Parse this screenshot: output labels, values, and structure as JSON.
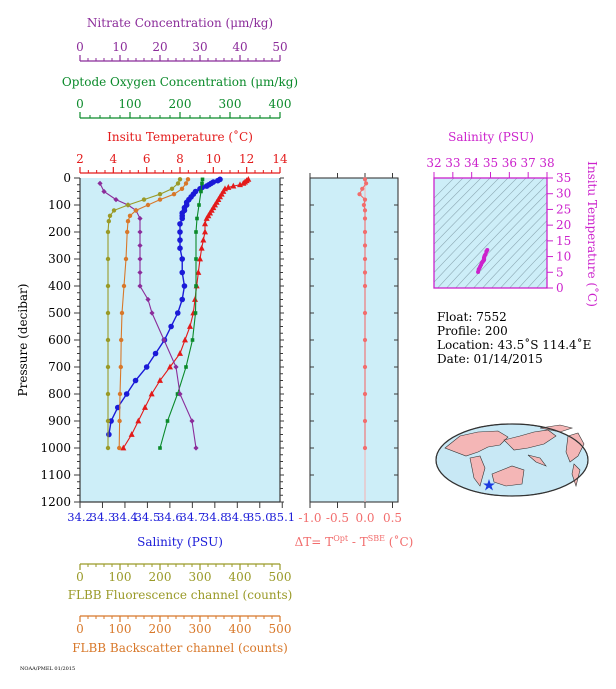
{
  "colors": {
    "nitrate": "#8b2c9a",
    "oxygen": "#0a8a2a",
    "temperature": "#e31a1a",
    "salinity": "#1a1ad8",
    "fluorescence": "#9a9a28",
    "backscatter": "#d8782a",
    "delta_t": "#f26d6d",
    "ts_axis": "#cc22cc",
    "panel_bg": "#cdeef8",
    "axis_dark": "#3a3a3a"
  },
  "axes": {
    "nitrate": {
      "label": "Nitrate Concentration (μm/kg)",
      "ticks": [
        "0",
        "10",
        "20",
        "30",
        "40",
        "50"
      ]
    },
    "oxygen": {
      "label": "Optode Oxygen Concentration (μm/kg)",
      "ticks": [
        "0",
        "100",
        "200",
        "300",
        "400"
      ]
    },
    "temperature": {
      "label": "Insitu Temperature (˚C)",
      "ticks": [
        "2",
        "4",
        "6",
        "8",
        "10",
        "12",
        "14"
      ]
    },
    "pressure": {
      "label": "Pressure (decibar)",
      "ticks": [
        "0",
        "100",
        "200",
        "300",
        "400",
        "500",
        "600",
        "700",
        "800",
        "900",
        "1000",
        "1100",
        "1200"
      ]
    },
    "salinity": {
      "label": "Salinity (PSU)",
      "ticks": [
        "34.2",
        "34.3",
        "34.4",
        "34.5",
        "34.6",
        "34.7",
        "34.8",
        "34.9",
        "35.0",
        "35.1"
      ]
    },
    "fluorescence": {
      "label": "FLBB Fluorescence channel (counts)",
      "ticks": [
        "0",
        "100",
        "200",
        "300",
        "400",
        "500"
      ]
    },
    "backscatter": {
      "label": "FLBB Backscatter channel (counts)",
      "ticks": [
        "0",
        "100",
        "200",
        "300",
        "400",
        "500"
      ]
    },
    "delta_t": {
      "label_prefix": "ΔT= T",
      "sup1": "Opt",
      "label_mid": " - T",
      "sup2": "SBE",
      "label_suffix": " (˚C)",
      "ticks": [
        "-1.0",
        "-0.5",
        "0.0",
        "0.5"
      ]
    },
    "ts_salinity": {
      "label": "Salinity (PSU)",
      "ticks": [
        "32",
        "33",
        "34",
        "35",
        "36",
        "37",
        "38"
      ]
    },
    "ts_temperature": {
      "label": "Insitu Temperature (˚C)",
      "ticks": [
        "0",
        "5",
        "10",
        "15",
        "20",
        "25",
        "30",
        "35"
      ]
    }
  },
  "info": {
    "float": "Float:  7552",
    "profile": "Profile:  200",
    "location": "Location:  43.5˚S  114.4˚E",
    "date": "Date:  01/14/2015"
  },
  "footer_note": "NOAA/PMEL  01/2015",
  "chart_data": [
    {
      "type": "line",
      "panel": "profiles",
      "ylabel": "Pressure (decibar)",
      "ylim": [
        1200,
        0
      ],
      "series": [
        {
          "name": "Insitu Temperature (˚C)",
          "xlim": [
            2,
            14
          ],
          "marker": "triangle",
          "y": [
            5,
            10,
            15,
            20,
            25,
            30,
            35,
            40,
            50,
            60,
            70,
            80,
            90,
            100,
            110,
            120,
            130,
            140,
            150,
            170,
            200,
            230,
            260,
            300,
            350,
            400,
            450,
            500,
            550,
            600,
            650,
            700,
            750,
            800,
            850,
            900,
            950,
            1000
          ],
          "x": [
            12.1,
            12.0,
            11.9,
            11.8,
            11.6,
            11.2,
            10.9,
            10.7,
            10.6,
            10.5,
            10.4,
            10.3,
            10.2,
            10.1,
            10.0,
            9.9,
            9.8,
            9.7,
            9.6,
            9.5,
            9.5,
            9.4,
            9.3,
            9.2,
            9.1,
            9.0,
            8.9,
            8.8,
            8.6,
            8.3,
            8.0,
            7.4,
            6.8,
            6.3,
            5.9,
            5.5,
            5.1,
            4.6
          ]
        },
        {
          "name": "Salinity (PSU)",
          "xlim": [
            34.2,
            35.1
          ],
          "marker": "circle",
          "y": [
            5,
            10,
            15,
            20,
            25,
            30,
            35,
            40,
            50,
            60,
            70,
            80,
            90,
            100,
            110,
            120,
            130,
            140,
            150,
            170,
            200,
            230,
            260,
            300,
            350,
            400,
            450,
            500,
            550,
            600,
            650,
            700,
            750,
            800,
            850,
            900,
            950
          ],
          "x": [
            34.83,
            34.82,
            34.8,
            34.79,
            34.78,
            34.77,
            34.75,
            34.74,
            34.72,
            34.71,
            34.7,
            34.69,
            34.68,
            34.68,
            34.67,
            34.67,
            34.66,
            34.66,
            34.66,
            34.65,
            34.65,
            34.65,
            34.65,
            34.66,
            34.66,
            34.67,
            34.66,
            34.64,
            34.61,
            34.58,
            34.54,
            34.5,
            34.45,
            34.41,
            34.37,
            34.34,
            34.33
          ]
        },
        {
          "name": "Optode Oxygen Concentration (μm/kg)",
          "xlim": [
            0,
            400
          ],
          "marker": "square",
          "y": [
            5,
            20,
            50,
            100,
            150,
            200,
            300,
            400,
            500,
            600,
            700,
            800,
            900,
            1000
          ],
          "x": [
            245,
            244,
            242,
            238,
            234,
            232,
            232,
            232,
            231,
            225,
            212,
            195,
            175,
            160
          ]
        },
        {
          "name": "Nitrate Concentration (μm/kg)",
          "xlim": [
            0,
            50
          ],
          "marker": "diamond",
          "y": [
            20,
            50,
            80,
            100,
            120,
            150,
            200,
            250,
            300,
            350,
            400,
            450,
            500,
            600,
            700,
            800,
            900,
            1000
          ],
          "x": [
            5,
            6,
            9,
            12,
            14,
            15,
            15,
            15,
            15,
            15,
            15,
            17,
            18,
            21,
            24,
            25,
            28,
            29
          ]
        },
        {
          "name": "FLBB Fluorescence channel (counts)",
          "xlim": [
            0,
            500
          ],
          "marker": "circle",
          "y": [
            5,
            20,
            40,
            60,
            80,
            100,
            120,
            140,
            160,
            200,
            300,
            400,
            500,
            600,
            700,
            800,
            900,
            1000
          ],
          "x": [
            250,
            245,
            230,
            200,
            160,
            120,
            85,
            75,
            72,
            70,
            70,
            70,
            70,
            70,
            70,
            70,
            70,
            70
          ]
        },
        {
          "name": "FLBB Backscatter channel (counts)",
          "xlim": [
            0,
            500
          ],
          "marker": "circle",
          "y": [
            5,
            20,
            40,
            60,
            80,
            100,
            120,
            140,
            160,
            200,
            300,
            400,
            500,
            600,
            700,
            800,
            900,
            1000
          ],
          "x": [
            270,
            265,
            255,
            235,
            200,
            170,
            140,
            125,
            120,
            118,
            115,
            110,
            105,
            103,
            102,
            100,
            99,
            98
          ]
        }
      ]
    },
    {
      "type": "scatter",
      "panel": "delta_t",
      "xlabel": "ΔT= T^Opt - T^SBE (˚C)",
      "xlim": [
        -1.0,
        0.6
      ],
      "ylim": [
        1200,
        0
      ],
      "series": [
        {
          "name": "ΔT",
          "y": [
            5,
            20,
            40,
            60,
            80,
            100,
            120,
            150,
            200,
            250,
            300,
            350,
            400,
            500,
            600,
            700,
            800,
            900,
            1000
          ],
          "x": [
            0.0,
            0.02,
            -0.05,
            -0.1,
            0.0,
            -0.02,
            0.0,
            0.0,
            0.0,
            0.0,
            0.0,
            0.0,
            0.0,
            0.0,
            0.0,
            0.0,
            0.0,
            0.0,
            0.0
          ]
        }
      ]
    },
    {
      "type": "line",
      "panel": "ts_diagram",
      "xlabel": "Salinity (PSU)",
      "ylabel": "Insitu Temperature (˚C)",
      "xlim": [
        32,
        38
      ],
      "ylim": [
        0,
        35
      ],
      "series": [
        {
          "name": "T-S",
          "x": [
            34.34,
            34.37,
            34.41,
            34.45,
            34.5,
            34.54,
            34.58,
            34.61,
            34.64,
            34.66,
            34.66,
            34.66,
            34.65,
            34.66,
            34.68,
            34.7,
            34.74,
            34.78,
            34.83
          ],
          "y": [
            5.1,
            5.9,
            6.3,
            6.8,
            7.4,
            8.0,
            8.3,
            8.6,
            8.8,
            9.0,
            9.2,
            9.4,
            9.5,
            9.7,
            10.1,
            10.4,
            10.7,
            11.6,
            12.1
          ]
        }
      ]
    }
  ]
}
